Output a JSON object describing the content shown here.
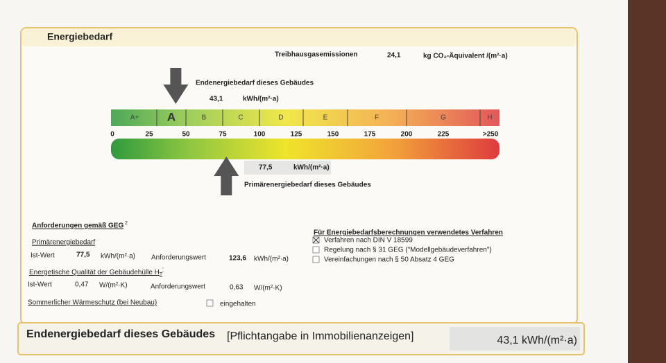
{
  "section_title": "Energiebedarf",
  "emissions": {
    "label": "Treibhausgasemissionen",
    "value": "24,1",
    "unit": "kg CO₂-Äquivalent /(m²·a)"
  },
  "end_energy": {
    "label": "Endenergiebedarf dieses Gebäudes",
    "value": 43.1,
    "value_label": "43,1",
    "unit": "kWh/(m²·a)"
  },
  "primary_energy": {
    "label": "Primärenergiebedarf dieses Gebäudes",
    "value": 77.5,
    "value_label": "77,5",
    "unit": "kWh/(m²·a)"
  },
  "scale": {
    "classes": [
      "A+",
      "A",
      "B",
      "C",
      "D",
      "E",
      "F",
      "G",
      "H"
    ],
    "ticks": [
      0,
      25,
      50,
      75,
      100,
      125,
      150,
      175,
      200,
      225,
      {
        "value": 250,
        "label": ">250"
      }
    ]
  },
  "requirements": {
    "title": "Anforderungen gemäß GEG",
    "footnote": "2",
    "primary": {
      "title": "Primärenergiebedarf",
      "actual_label": "Ist-Wert",
      "actual": "77,5",
      "actual_unit": "kWh/(m²·a)",
      "required_label": "Anforderungswert",
      "required": "123,6",
      "required_unit": "kWh/(m²·a)"
    },
    "envelope": {
      "title": "Energetische Qualität der Gebäudehülle H",
      "title_sub": "T",
      "title_sup": "'",
      "actual_label": "Ist-Wert",
      "actual": "0,47",
      "actual_unit": "W/(m²·K)",
      "required_label": "Anforderungswert",
      "required": "0,63",
      "required_unit": "W/(m²·K)"
    },
    "summer": {
      "title": "Sommerlicher Wärmeschutz (bei Neubau)",
      "option": "eingehalten",
      "checked": false
    }
  },
  "method": {
    "title": "Für Energiebedarfsberechnungen verwendetes Verfahren",
    "options": [
      {
        "label": "Verfahren nach DIN V 18599",
        "checked": true
      },
      {
        "label": "Regelung nach § 31 GEG (\"Modellgebäudeverfahren\")",
        "checked": false
      },
      {
        "label": "Vereinfachungen nach § 50 Absatz 4 GEG",
        "checked": false
      }
    ]
  },
  "footer": {
    "title": "Endenergiebedarf dieses Gebäudes",
    "note": "[Pflichtangabe in Immobilienanzeigen]",
    "value": "43,1 kWh/(m²·a)"
  }
}
